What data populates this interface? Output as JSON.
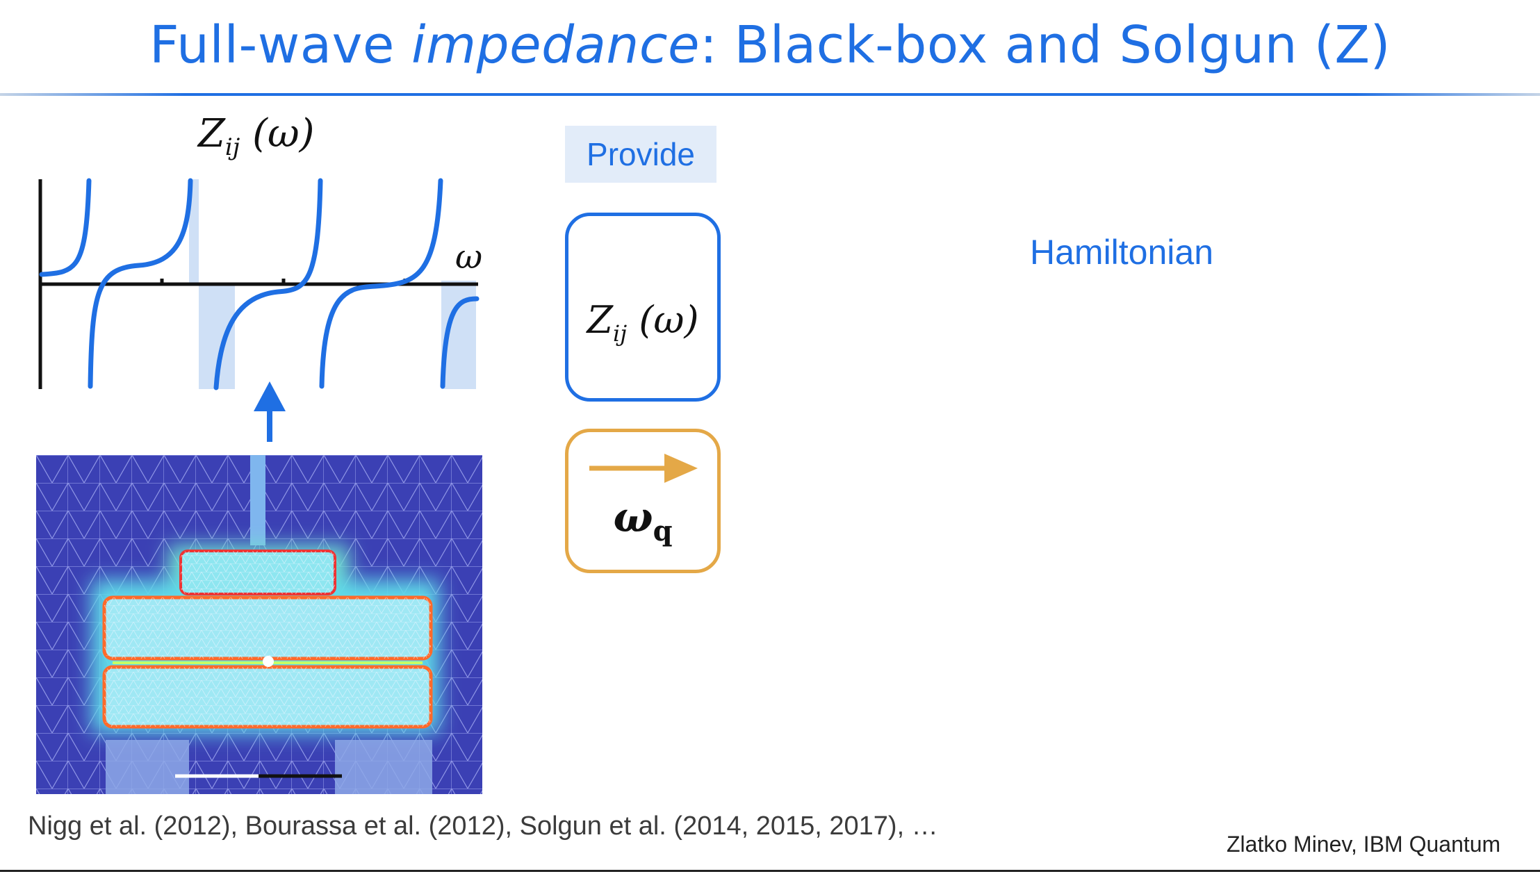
{
  "slide": {
    "title_prefix": "Full-wave ",
    "title_italic": "impedance",
    "title_suffix": ": Black-box and Solgun (Z)"
  },
  "plot": {
    "function_label_main": "Z",
    "function_label_sub": "ij",
    "function_label_arg": " (ω)",
    "axis_label": "ω",
    "colors": {
      "curve": "#1f6fe3",
      "fill": "#cfe0f6",
      "axis": "#111111"
    }
  },
  "flow": {
    "provide_label": "Provide",
    "z_box_main": "Z",
    "z_box_sub": "ij",
    "z_box_arg": " (ω)",
    "w_box_main": "ω",
    "w_box_sub": "q",
    "colors": {
      "blue": "#1f6fe3",
      "orange": "#e4a847"
    }
  },
  "right": {
    "hamiltonian_label": "Hamiltonian"
  },
  "footer": {
    "references": "Nigg et al. (2012), Bourassa et al. (2012), Solgun et al. (2014, 2015, 2017), …",
    "author": "Zlatko Minev, IBM Quantum"
  }
}
